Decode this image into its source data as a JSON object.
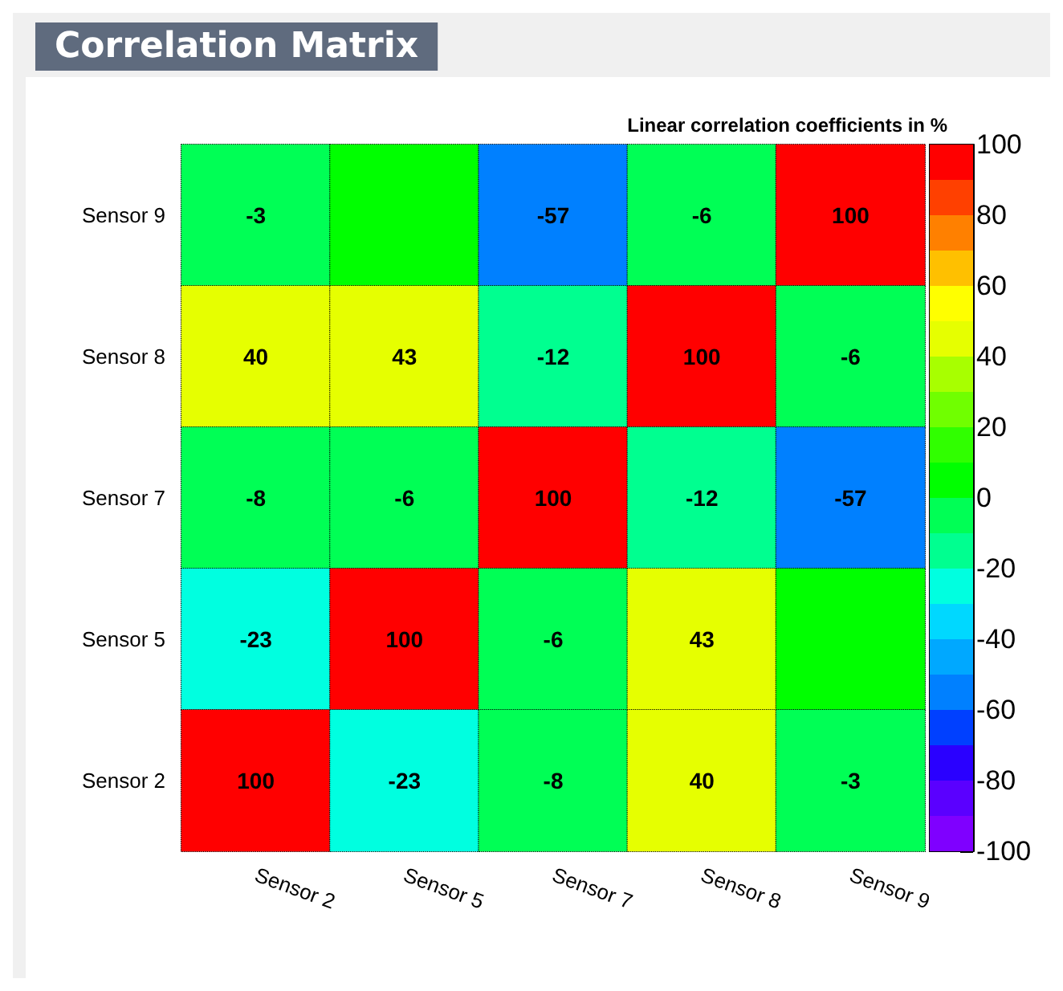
{
  "chart_data": {
    "type": "heatmap",
    "title": "Correlation Matrix",
    "clabel": "Linear correlation coefficients in %",
    "categories": [
      "Sensor 2",
      "Sensor 5",
      "Sensor 7",
      "Sensor 8",
      "Sensor 9"
    ],
    "y_categories": [
      "Sensor 9",
      "Sensor 8",
      "Sensor 7",
      "Sensor 5",
      "Sensor 2"
    ],
    "cells": [
      [
        -3,
        0,
        -57,
        -6,
        100
      ],
      [
        40,
        43,
        -12,
        100,
        -6
      ],
      [
        -8,
        -6,
        100,
        -12,
        -57
      ],
      [
        -23,
        100,
        -6,
        43,
        0
      ],
      [
        100,
        -23,
        -8,
        40,
        -3
      ]
    ],
    "cell_labels": [
      [
        "-3",
        null,
        "-57",
        "-6",
        "100"
      ],
      [
        "40",
        "43",
        "-12",
        "100",
        "-6"
      ],
      [
        "-8",
        "-6",
        "100",
        "-12",
        "-57"
      ],
      [
        "-23",
        "100",
        "-6",
        "43",
        null
      ],
      [
        "100",
        "-23",
        "-8",
        "40",
        "-3"
      ]
    ],
    "clim": [
      -100,
      100
    ],
    "cticks": [
      -100,
      -80,
      -60,
      -40,
      -20,
      0,
      20,
      40,
      60,
      80,
      100
    ]
  }
}
